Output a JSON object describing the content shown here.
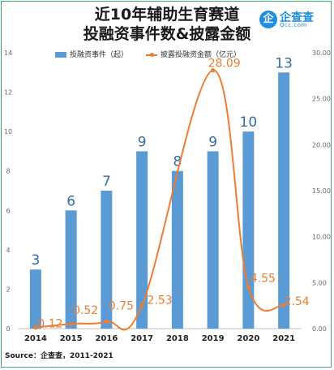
{
  "title_line1": "近10年辅助生育赛道",
  "title_line2": "投融资事件数&披露金额",
  "logo": {
    "icon_text": "企",
    "name": "企查查",
    "sub": "Qcc.com"
  },
  "source": "Source：企查查，2011-2021",
  "colors": {
    "bar": "#5b9bd5",
    "line": "#ed7d31",
    "bar_label": "#2e6fa8"
  },
  "chart_data": {
    "type": "bar+line",
    "categories": [
      "2014",
      "2015",
      "2016",
      "2017",
      "2018",
      "2019",
      "2020",
      "2021"
    ],
    "series": [
      {
        "name": "投融资事件（起）",
        "type": "bar",
        "axis": "left",
        "values": [
          3,
          6,
          7,
          9,
          8,
          9,
          10,
          13
        ],
        "labels": [
          "3",
          "6",
          "7",
          "9",
          "8",
          "9",
          "10",
          "13"
        ]
      },
      {
        "name": "披露投融资金额（亿元）",
        "type": "line",
        "axis": "right",
        "values": [
          0.12,
          0.52,
          0.75,
          2.53,
          null,
          28.09,
          4.55,
          2.54
        ],
        "labels": [
          "0.12",
          "0.52",
          "0.75",
          "2.53",
          "",
          "28.09",
          "4.55",
          "2.54"
        ]
      }
    ],
    "y_left": {
      "min": 0,
      "max": 14,
      "ticks": [
        "0",
        "2",
        "4",
        "6",
        "8",
        "10",
        "12",
        "14"
      ]
    },
    "y_right": {
      "min": 0,
      "max": 30,
      "ticks": [
        "0.00",
        "5.00",
        "10.00",
        "15.00",
        "20.00",
        "25.00",
        "30.00"
      ]
    },
    "grid": false,
    "legend_position": "top"
  }
}
